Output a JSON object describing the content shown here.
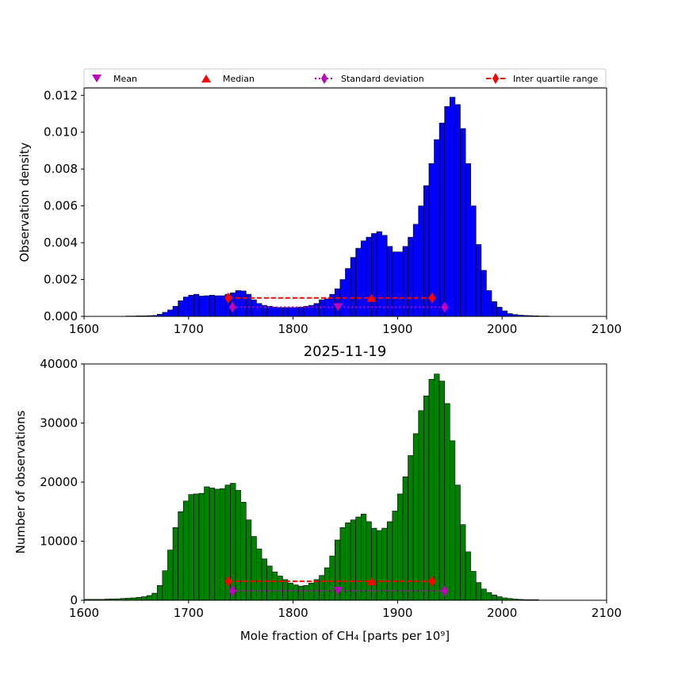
{
  "legend": {
    "items": [
      {
        "label": "Mean",
        "marker": "triangle-down",
        "color": "#bf00bf"
      },
      {
        "label": "Median",
        "marker": "triangle-up",
        "color": "#ff0000"
      },
      {
        "label": "Standard deviation",
        "marker": "diamond-dotted",
        "color": "#bf00bf"
      },
      {
        "label": "Inter quartile range",
        "marker": "diamond-dashed",
        "color": "#ff0000"
      }
    ]
  },
  "chart_data": [
    {
      "type": "bar",
      "title": "",
      "xlabel": "",
      "ylabel": "Observation density",
      "xlim": [
        1600,
        2100
      ],
      "ylim": [
        0,
        0.0124
      ],
      "xticks": [
        1600,
        1700,
        1800,
        1900,
        2000,
        2100
      ],
      "yticks": [
        0.0,
        0.002,
        0.004,
        0.006,
        0.008,
        0.01,
        0.012
      ],
      "ytick_decimals": 3,
      "bar_color": "#0000ff",
      "bin_start": 1640,
      "bin_width": 5,
      "values": [
        2e-05,
        2e-05,
        3e-05,
        3e-05,
        4e-05,
        5e-05,
        0.00012,
        0.00022,
        0.00035,
        0.00055,
        0.00085,
        0.00105,
        0.00115,
        0.0012,
        0.0011,
        0.00112,
        0.00115,
        0.00112,
        0.00112,
        0.0012,
        0.00128,
        0.0014,
        0.00138,
        0.0012,
        0.0009,
        0.0007,
        0.0006,
        0.00055,
        0.0005,
        0.00048,
        0.00048,
        0.00048,
        0.00048,
        0.0005,
        0.00055,
        0.0006,
        0.0007,
        0.0009,
        0.00095,
        0.0012,
        0.0015,
        0.002,
        0.0026,
        0.0032,
        0.0037,
        0.0041,
        0.0043,
        0.0045,
        0.0046,
        0.0044,
        0.0038,
        0.0035,
        0.0035,
        0.0038,
        0.0043,
        0.005,
        0.006,
        0.0071,
        0.0083,
        0.0096,
        0.0105,
        0.0114,
        0.0119,
        0.0115,
        0.0102,
        0.0083,
        0.006,
        0.0039,
        0.0025,
        0.0014,
        0.0008,
        0.0005,
        0.0003,
        0.00015,
        0.0001,
        7e-05,
        5e-05,
        4e-05,
        3e-05,
        2e-05,
        2e-05
      ],
      "markers": {
        "mean": {
          "x": 1843,
          "y": 0.0005
        },
        "median": {
          "x": 1875,
          "y": 0.001
        },
        "std": {
          "x1": 1742,
          "x2": 1945,
          "y": 0.0005
        },
        "iqr": {
          "x1": 1738,
          "x2": 1933,
          "y": 0.001
        }
      }
    },
    {
      "type": "bar",
      "title": "2025-11-19",
      "xlabel": "Mole fraction of CH₄ [parts per 10⁹]",
      "ylabel": "Number of observations",
      "xlim": [
        1600,
        2100
      ],
      "ylim": [
        0,
        40000
      ],
      "xticks": [
        1600,
        1700,
        1800,
        1900,
        2000,
        2100
      ],
      "yticks": [
        0,
        10000,
        20000,
        30000,
        40000
      ],
      "ytick_decimals": 0,
      "bar_color": "#008000",
      "bin_start": 1600,
      "bin_width": 5,
      "values": [
        150,
        150,
        150,
        150,
        200,
        220,
        250,
        300,
        350,
        400,
        500,
        600,
        800,
        1200,
        2500,
        5000,
        8500,
        12300,
        15000,
        16800,
        17900,
        18000,
        18100,
        19200,
        19000,
        18800,
        18900,
        19500,
        19800,
        18600,
        16600,
        13600,
        10800,
        8700,
        7000,
        5800,
        4800,
        4100,
        3500,
        2900,
        2600,
        2400,
        2500,
        2900,
        3500,
        4200,
        5500,
        7500,
        10200,
        12300,
        13100,
        13600,
        14100,
        14600,
        13300,
        12200,
        11800,
        12200,
        13300,
        15100,
        18000,
        20900,
        24500,
        28200,
        32100,
        34600,
        37400,
        38300,
        37100,
        33300,
        27000,
        19500,
        12800,
        8200,
        4900,
        3000,
        1900,
        1300,
        900,
        600,
        400,
        300,
        200,
        150,
        100,
        100,
        100
      ],
      "markers": {
        "mean": {
          "x": 1843,
          "y": 1600
        },
        "median": {
          "x": 1875,
          "y": 3200
        },
        "std": {
          "x1": 1742,
          "x2": 1945,
          "y": 1600
        },
        "iqr": {
          "x1": 1738,
          "x2": 1933,
          "y": 3200
        }
      }
    }
  ]
}
